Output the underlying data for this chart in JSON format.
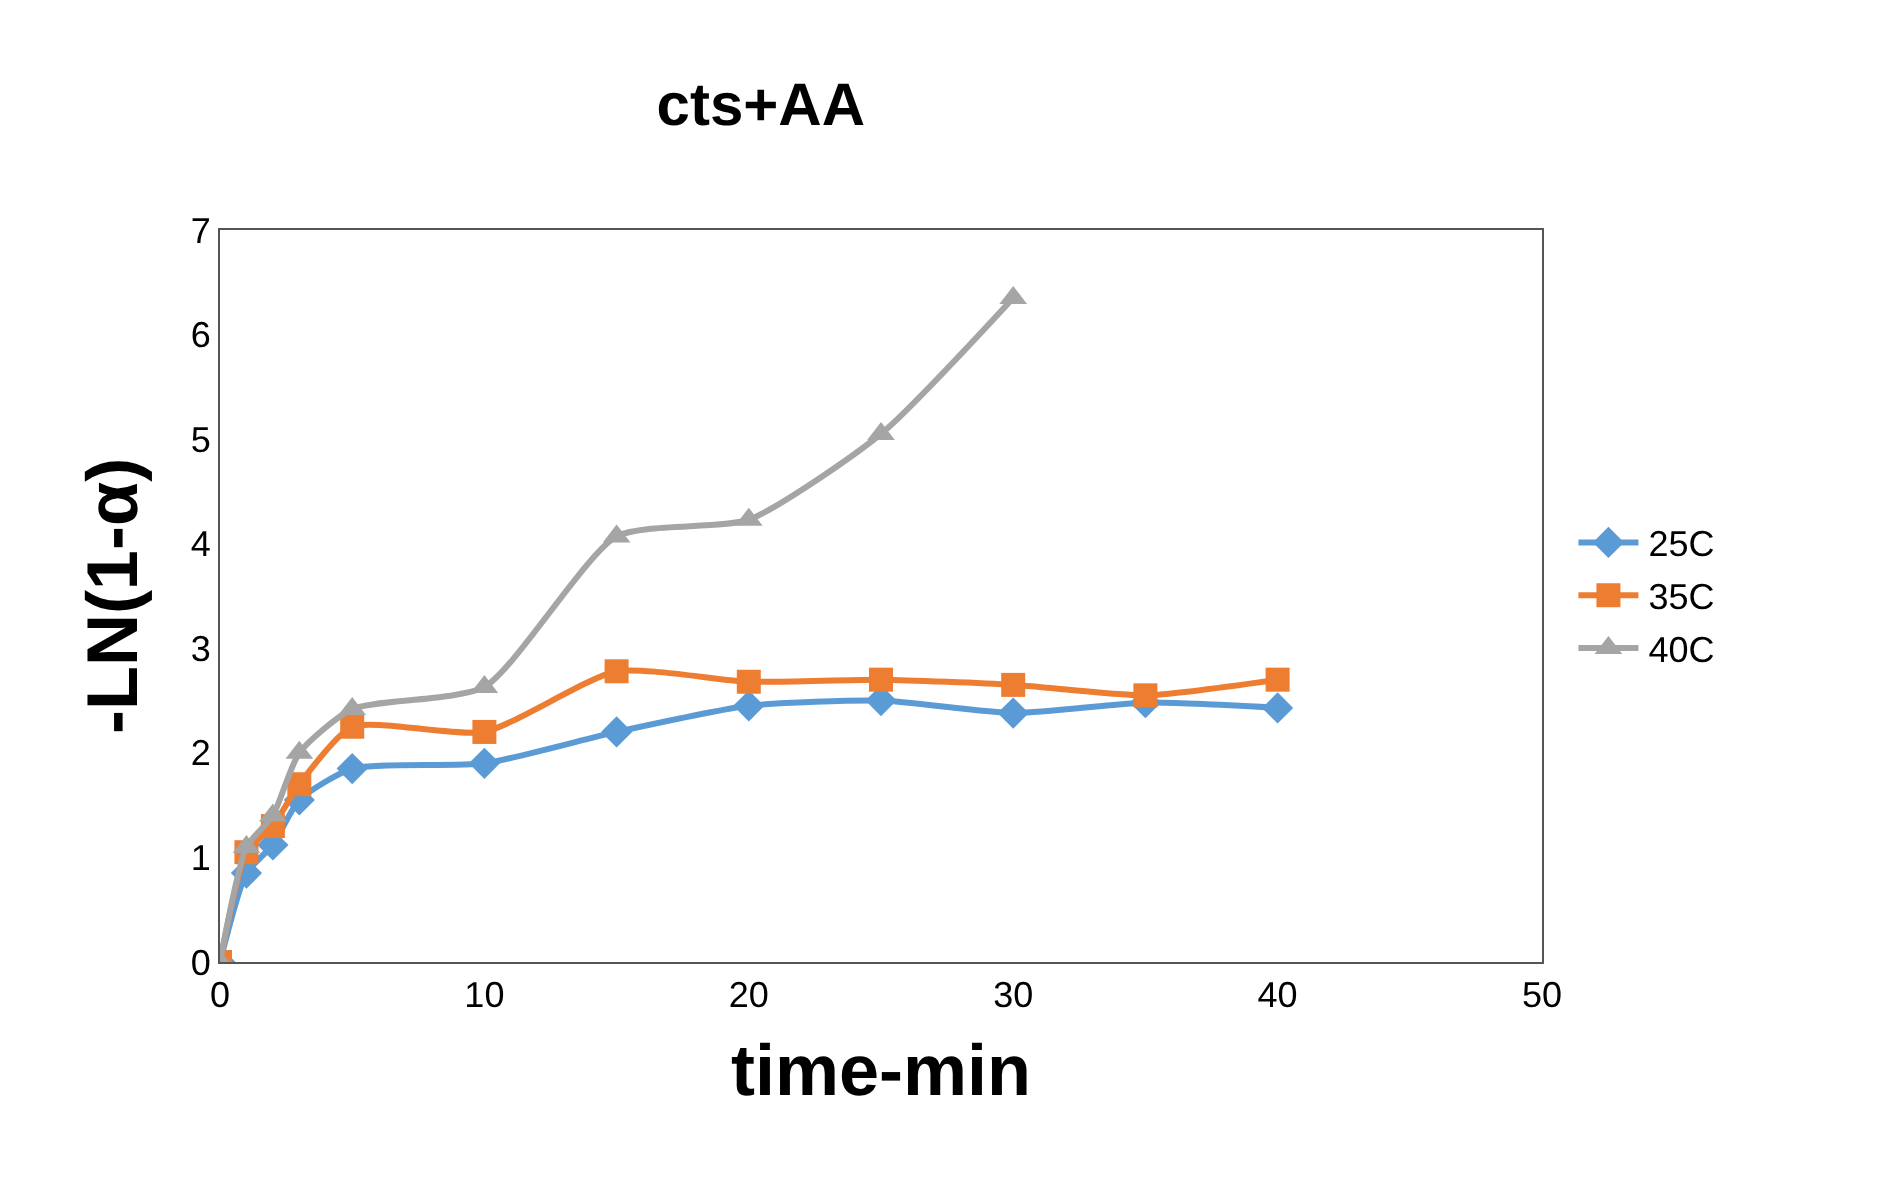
{
  "chart_data": {
    "type": "line",
    "title": "cts+AA",
    "xlabel": "time-min",
    "ylabel": "-LN(1-α)",
    "x": [
      0,
      1,
      2,
      3,
      5,
      10,
      15,
      20,
      25,
      30,
      35,
      40
    ],
    "series": [
      {
        "name": "25C",
        "color": "#5b9bd5",
        "marker": "diamond",
        "values": [
          0,
          0.85,
          1.12,
          1.55,
          1.85,
          1.9,
          2.2,
          2.45,
          2.5,
          2.38,
          2.48,
          2.43
        ]
      },
      {
        "name": "35C",
        "color": "#ed7d31",
        "marker": "square",
        "values": [
          0,
          1.05,
          1.3,
          1.7,
          2.25,
          2.2,
          2.78,
          2.68,
          2.7,
          2.65,
          2.55,
          2.7
        ]
      },
      {
        "name": "40C",
        "color": "#a5a5a5",
        "marker": "triangle",
        "x": [
          0,
          1,
          2,
          3,
          5,
          10,
          15,
          20,
          25,
          30
        ],
        "values": [
          0,
          1.1,
          1.4,
          2.0,
          2.42,
          2.63,
          4.07,
          4.23,
          5.05,
          6.35
        ]
      }
    ],
    "xlim": [
      0,
      50
    ],
    "xticks": [
      0,
      10,
      20,
      30,
      40,
      50
    ],
    "ylim": [
      0,
      7
    ],
    "yticks": [
      0,
      1,
      2,
      3,
      4,
      5,
      6,
      7
    ],
    "legend": "right",
    "line_style": "solid"
  }
}
